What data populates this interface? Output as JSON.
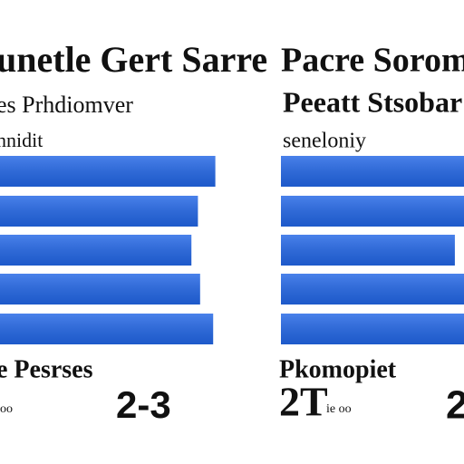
{
  "chart_data": [
    {
      "type": "bar",
      "orientation": "horizontal",
      "title": "unetle Gert Sarre",
      "subtitle": "es Prhdiomver",
      "axis_label": "nnidit",
      "values": [
        99,
        91,
        88,
        92,
        98
      ],
      "color": "#2266e6",
      "annotations": [
        "e Pesrses",
        "2-3",
        "oo"
      ]
    },
    {
      "type": "bar",
      "orientation": "horizontal",
      "title": "Pacre Soromr",
      "subtitle": "Peeatt Stsobar",
      "axis_label": "seneloniy",
      "values": [
        100,
        100,
        95,
        100,
        100
      ],
      "color": "#2266e6",
      "annotations": [
        "Pkomopiet",
        "2T",
        "ie oo",
        "2"
      ]
    }
  ]
}
